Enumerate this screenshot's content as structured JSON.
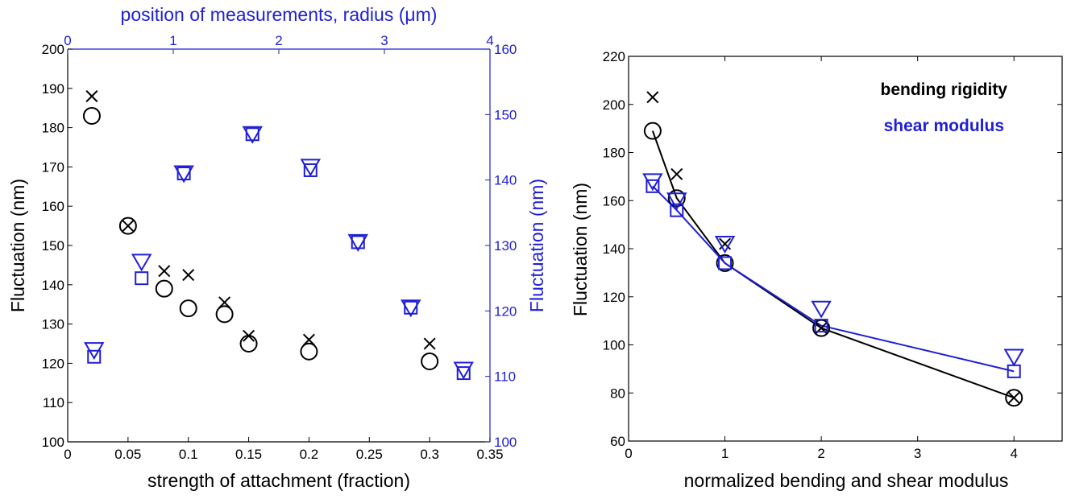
{
  "chart_data": [
    {
      "type": "scatter",
      "xlabel": "strength of attachment (fraction)",
      "ylabel": "Fluctuation (nm)",
      "xlim": [
        0,
        0.35
      ],
      "ylim": [
        100,
        200
      ],
      "x_ticks": [
        "0",
        "0.05",
        "0.1",
        "0.15",
        "0.2",
        "0.25",
        "0.3",
        "0.35"
      ],
      "y_ticks": [
        "100",
        "110",
        "120",
        "130",
        "140",
        "150",
        "160",
        "170",
        "180",
        "190",
        "200"
      ],
      "top_axis": {
        "label": "position of measurements, radius (μm)",
        "lim": [
          0,
          4
        ],
        "ticks": [
          "0",
          "1",
          "2",
          "3",
          "4"
        ]
      },
      "right_axis": {
        "label": "Fluctuation (nm)",
        "lim": [
          100,
          160
        ],
        "ticks": [
          "100",
          "110",
          "120",
          "130",
          "140",
          "150",
          "160"
        ]
      },
      "colors": {
        "black": "#000000",
        "blue": "#1f1fd6"
      },
      "bottom_left_series": [
        {
          "marker": "x",
          "x": [
            0.02,
            0.05,
            0.08,
            0.1,
            0.13,
            0.15,
            0.2,
            0.3
          ],
          "y": [
            188,
            155,
            143.5,
            142.5,
            135.5,
            127,
            126,
            125
          ]
        },
        {
          "marker": "circle",
          "x": [
            0.02,
            0.05,
            0.08,
            0.1,
            0.13,
            0.15,
            0.2,
            0.3
          ],
          "y": [
            183,
            155,
            139,
            134,
            132.5,
            125,
            123,
            120.5
          ]
        }
      ],
      "top_right_series": [
        {
          "marker": "triangle",
          "x": [
            0.25,
            0.7,
            1.1,
            1.75,
            2.3,
            2.75,
            3.25,
            3.75
          ],
          "y": [
            114,
            127.5,
            141,
            147,
            142,
            130.5,
            120.5,
            111
          ]
        },
        {
          "marker": "square",
          "x": [
            0.25,
            0.7,
            1.1,
            1.75,
            2.3,
            2.75,
            3.25,
            3.75
          ],
          "y": [
            113,
            125,
            141,
            147,
            141.5,
            130.5,
            120.5,
            110.5
          ]
        }
      ]
    },
    {
      "type": "line",
      "xlabel": "normalized bending and shear modulus",
      "ylabel": "Fluctuation (nm)",
      "xlim": [
        0,
        4.5
      ],
      "ylim": [
        60,
        220
      ],
      "x_ticks": [
        "0",
        "1",
        "2",
        "3",
        "4"
      ],
      "y_ticks": [
        "60",
        "80",
        "100",
        "120",
        "140",
        "160",
        "180",
        "200",
        "220"
      ],
      "legend": {
        "placement": "top-right",
        "entries": [
          "bending rigidity",
          "shear modulus"
        ]
      },
      "colors": {
        "black": "#000000",
        "blue": "#1f1fd6"
      },
      "series": [
        {
          "name": "bending rigidity",
          "color": "#000000",
          "x": [
            0.25,
            0.5,
            1,
            2,
            4
          ],
          "values": [
            189,
            161,
            134,
            107,
            78
          ],
          "x_marker_values": [
            203,
            171,
            142,
            107,
            78
          ]
        },
        {
          "name": "shear modulus",
          "color": "#1f1fd6",
          "x": [
            0.25,
            0.5,
            1,
            2,
            4
          ],
          "values": [
            166,
            156,
            134,
            108,
            89
          ],
          "triangle_values": [
            168,
            160,
            142,
            115,
            95
          ]
        }
      ]
    }
  ]
}
